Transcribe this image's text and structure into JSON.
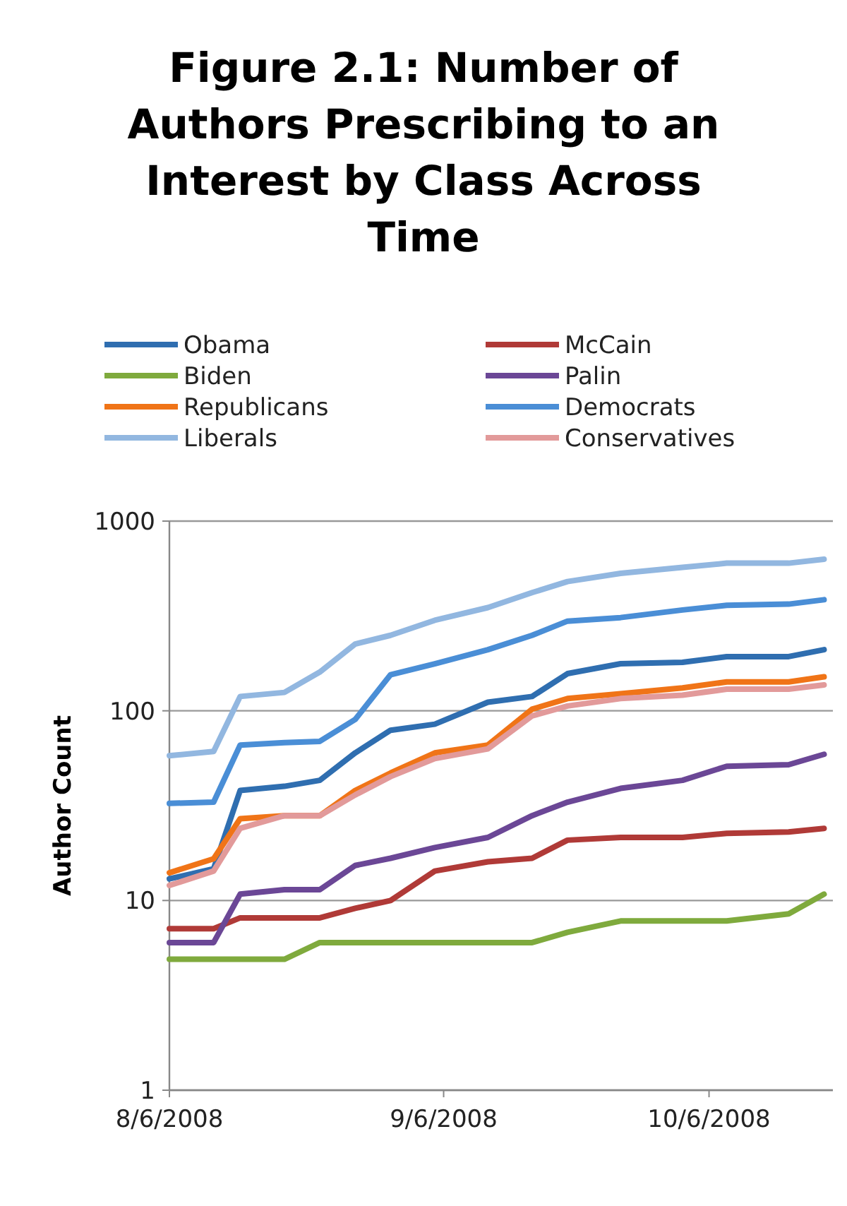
{
  "chart_data": {
    "type": "line",
    "title": "Figure 2.1: Number of Authors Prescribing to an Interest by Class Across Time",
    "ylabel": "Author Count",
    "x": [
      "2008-08-06",
      "2008-08-11",
      "2008-08-14",
      "2008-08-19",
      "2008-08-23",
      "2008-08-27",
      "2008-08-31",
      "2008-09-05",
      "2008-09-11",
      "2008-09-16",
      "2008-09-20",
      "2008-09-26",
      "2008-10-03",
      "2008-10-08",
      "2008-10-15",
      "2008-10-19"
    ],
    "xlim": [
      "2008-08-06",
      "2008-10-20"
    ],
    "xticks": [
      {
        "value": "2008-08-06",
        "label": "8/6/2008"
      },
      {
        "value": "2008-09-06",
        "label": "9/6/2008"
      },
      {
        "value": "2008-10-06",
        "label": "10/6/2008"
      }
    ],
    "ylim": [
      1,
      1000
    ],
    "yticks": [
      1,
      10,
      100,
      1000
    ],
    "log": "y",
    "grid": "y",
    "legend": "top",
    "line_style": "solid",
    "marker": "none",
    "series": [
      {
        "name": "Obama",
        "color": "#2f6eb0",
        "values": [
          13,
          14.7,
          38,
          40,
          43,
          60,
          79,
          85,
          111,
          119,
          157,
          177,
          180,
          193,
          193,
          210
        ]
      },
      {
        "name": "McCain",
        "color": "#b03a37",
        "values": [
          7.1,
          7.1,
          8.1,
          8.1,
          8.1,
          9.1,
          10,
          14.3,
          16,
          16.7,
          20.8,
          21.5,
          21.5,
          22.6,
          23,
          24
        ]
      },
      {
        "name": "Biden",
        "color": "#7faa3d",
        "values": [
          4.9,
          4.9,
          4.9,
          4.9,
          6,
          6,
          6,
          6,
          6,
          6,
          6.8,
          7.8,
          7.8,
          7.8,
          8.5,
          10.8
        ]
      },
      {
        "name": "Palin",
        "color": "#6b4796",
        "values": [
          6,
          6,
          10.8,
          11.4,
          11.4,
          15.3,
          16.7,
          19,
          21.5,
          28,
          33,
          39,
          43,
          51,
          52,
          59
        ]
      },
      {
        "name": "Republicans",
        "color": "#f07417",
        "values": [
          14,
          16.6,
          27,
          28,
          28,
          38,
          47,
          60,
          66,
          102,
          116,
          123,
          132,
          142,
          142,
          151
        ]
      },
      {
        "name": "Democrats",
        "color": "#4a8ed6",
        "values": [
          32.5,
          33,
          66,
          68,
          69,
          90,
          155,
          177,
          210,
          250,
          297,
          310,
          340,
          360,
          365,
          385
        ]
      },
      {
        "name": "Liberals",
        "color": "#92b7e0",
        "values": [
          58,
          61,
          119,
          125,
          160,
          225,
          250,
          300,
          350,
          420,
          480,
          530,
          570,
          600,
          600,
          630
        ]
      },
      {
        "name": "Conservatives",
        "color": "#e29a9a",
        "values": [
          12,
          14.3,
          24,
          28,
          28,
          36,
          45,
          56,
          63,
          94,
          106,
          116,
          121,
          130,
          130,
          137
        ]
      }
    ]
  }
}
